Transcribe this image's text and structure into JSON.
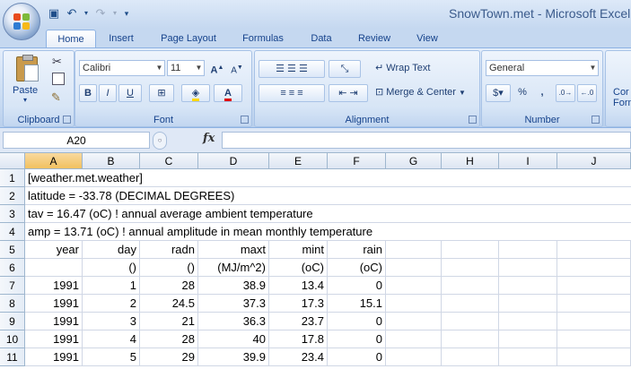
{
  "window": {
    "title": "SnowTown.met - Microsoft Excel"
  },
  "qat": {
    "save_icon": "save-icon",
    "undo_icon": "undo-icon",
    "redo_icon": "redo-icon"
  },
  "tabs": [
    "Home",
    "Insert",
    "Page Layout",
    "Formulas",
    "Data",
    "Review",
    "View"
  ],
  "active_tab": "Home",
  "ribbon": {
    "clipboard": {
      "label": "Clipboard",
      "paste": "Paste"
    },
    "font": {
      "label": "Font",
      "name": "Calibri",
      "size": "11"
    },
    "alignment": {
      "label": "Alignment",
      "wrap": "Wrap Text",
      "merge": "Merge & Center"
    },
    "number": {
      "label": "Number",
      "format": "General",
      "currency": "$",
      "percent": "%",
      "comma": ","
    },
    "cut_off": {
      "line1": "Cor",
      "line2": "Form"
    }
  },
  "formula_bar": {
    "name_box": "A20",
    "fx": "fx",
    "value": ""
  },
  "columns": [
    "A",
    "B",
    "C",
    "D",
    "E",
    "F",
    "G",
    "H",
    "I",
    "J"
  ],
  "selected_column": "A",
  "rows": [
    {
      "num": "1",
      "text": "[weather.met.weather]"
    },
    {
      "num": "2",
      "text": "latitude  = -33.78  (DECIMAL DEGREES)"
    },
    {
      "num": "3",
      "text": "tav  = 16.47 (oC) ! annual average ambient temperature"
    },
    {
      "num": "4",
      "text": "amp  = 13.71 (oC) ! annual amplitude in mean monthly temperature"
    },
    {
      "num": "5",
      "cells": [
        "year",
        "day",
        "radn",
        "maxt",
        "mint",
        "rain"
      ]
    },
    {
      "num": "6",
      "cells": [
        "",
        "()",
        "()",
        "(MJ/m^2)",
        "(oC)",
        "(oC)"
      ]
    },
    {
      "num": "7",
      "cells": [
        "1991",
        "1",
        "28",
        "38.9",
        "13.4",
        "0"
      ]
    },
    {
      "num": "8",
      "cells": [
        "1991",
        "2",
        "24.5",
        "37.3",
        "17.3",
        "15.1"
      ]
    },
    {
      "num": "9",
      "cells": [
        "1991",
        "3",
        "21",
        "36.3",
        "23.7",
        "0"
      ]
    },
    {
      "num": "10",
      "cells": [
        "1991",
        "4",
        "28",
        "40",
        "17.8",
        "0"
      ]
    },
    {
      "num": "11",
      "cells": [
        "1991",
        "5",
        "29",
        "39.9",
        "23.4",
        "0"
      ]
    }
  ]
}
